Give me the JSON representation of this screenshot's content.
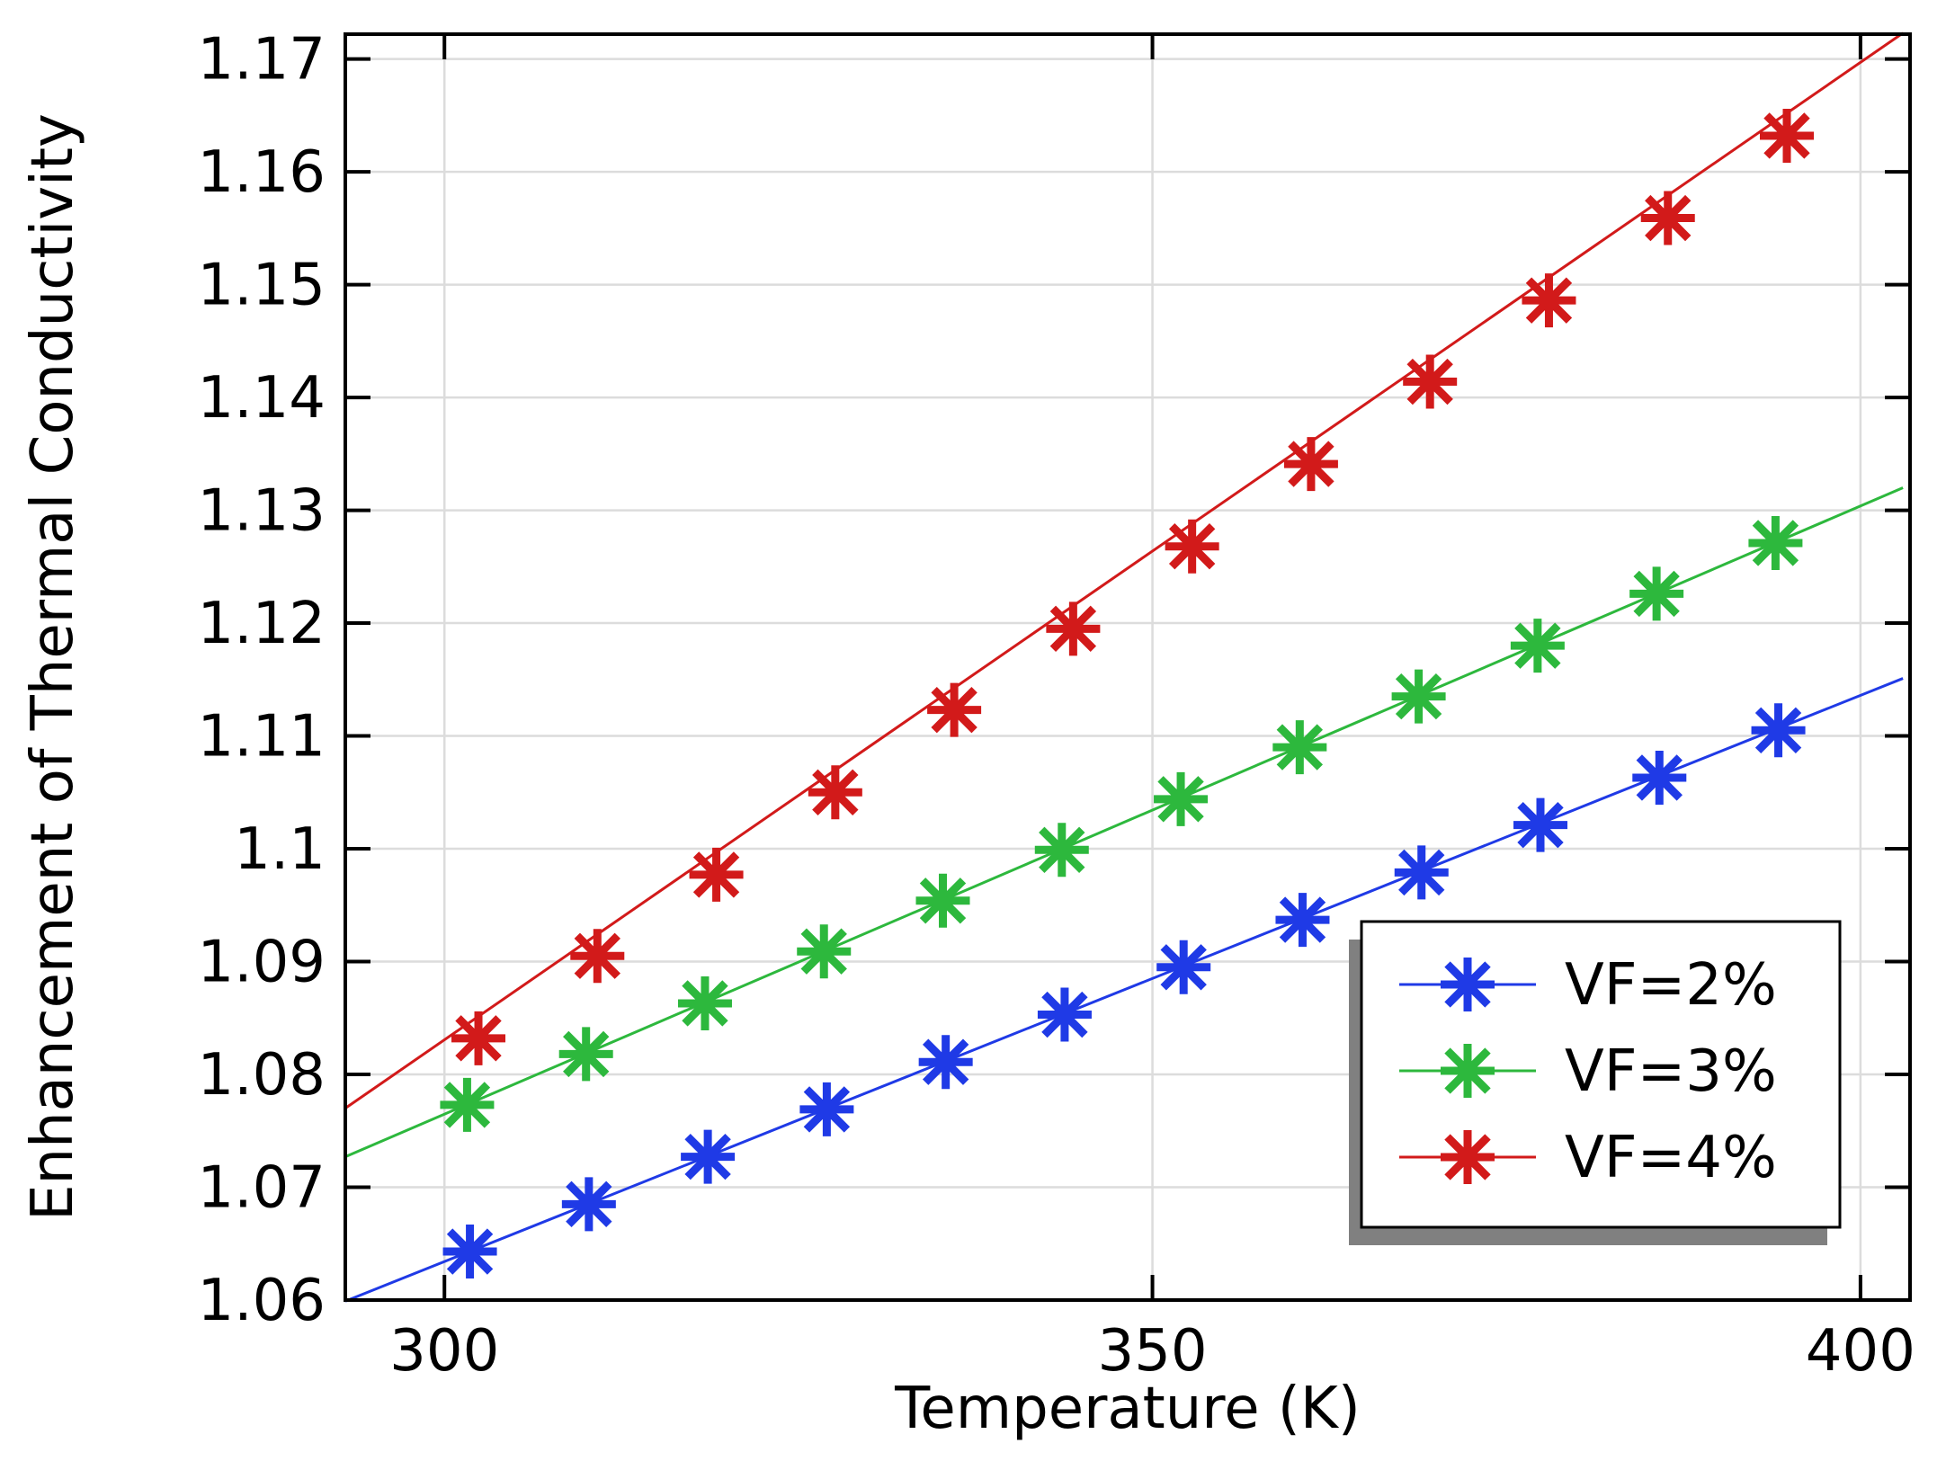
{
  "chart_data": {
    "type": "line",
    "title": "",
    "xlabel": "Temperature (K)",
    "ylabel": "Enhancement of Thermal Conductivity",
    "xlim": [
      293,
      403.5
    ],
    "ylim": [
      1.06,
      1.1722
    ],
    "xticks": [
      300,
      350,
      400
    ],
    "xtick_labels": [
      "300",
      "350",
      "400"
    ],
    "yticks": [
      1.06,
      1.07,
      1.08,
      1.09,
      1.1,
      1.11,
      1.12,
      1.13,
      1.14,
      1.15,
      1.16,
      1.17
    ],
    "ytick_labels": [
      "1.06",
      "1.07",
      "1.08",
      "1.09",
      "1.1",
      "1.11",
      "1.12",
      "1.13",
      "1.14",
      "1.15",
      "1.16",
      "1.17"
    ],
    "grid": true,
    "legend_position": "bottom-right",
    "series": [
      {
        "name": "VF=2%",
        "color": "#1f3ae6",
        "line": [
          [
            293,
            1.0599
          ],
          [
            403,
            1.1151
          ]
        ],
        "x": [
          301.8,
          310.2,
          318.6,
          327.0,
          335.4,
          343.8,
          352.2,
          360.6,
          369.0,
          377.4,
          385.8,
          394.2
        ],
        "y": [
          1.0643,
          1.0685,
          1.0727,
          1.0769,
          1.0811,
          1.0853,
          1.0895,
          1.0937,
          1.0979,
          1.1021,
          1.1063,
          1.1105
        ]
      },
      {
        "name": "VF=3%",
        "color": "#2db83d",
        "line": [
          [
            293,
            1.0727
          ],
          [
            403,
            1.132
          ]
        ],
        "x": [
          301.6,
          310.0,
          318.4,
          326.8,
          335.2,
          343.6,
          352.0,
          360.4,
          368.8,
          377.2,
          385.6,
          394.0
        ],
        "y": [
          1.0773,
          1.0818,
          1.0863,
          1.0909,
          1.0954,
          1.0999,
          1.1044,
          1.109,
          1.1135,
          1.118,
          1.1226,
          1.1271
        ]
      },
      {
        "name": "VF=4%",
        "color": "#d21a1a",
        "line": [
          [
            293,
            1.077
          ],
          [
            403,
            1.1723
          ]
        ],
        "x": [
          302.4,
          310.8,
          319.2,
          327.6,
          336.0,
          344.4,
          352.8,
          361.2,
          369.6,
          378.0,
          386.4,
          394.8
        ],
        "y": [
          1.0832,
          1.0905,
          1.0977,
          1.105,
          1.1123,
          1.1195,
          1.1268,
          1.1341,
          1.1414,
          1.1486,
          1.1559,
          1.1632
        ]
      }
    ]
  }
}
